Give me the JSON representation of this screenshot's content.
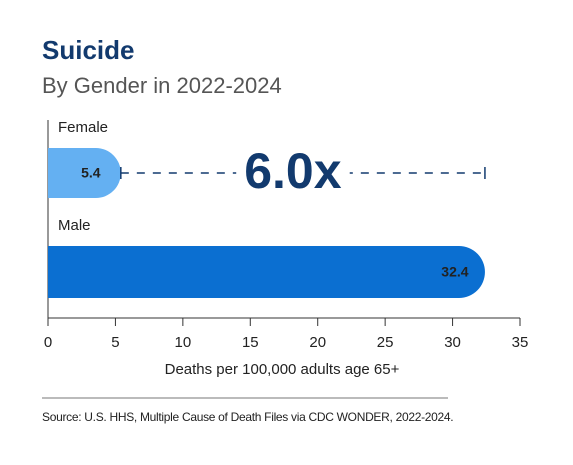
{
  "chart_data": {
    "type": "bar",
    "orientation": "horizontal",
    "title": "Suicide",
    "subtitle": "By Gender in 2022-2024",
    "categories": [
      "Female",
      "Male"
    ],
    "values": [
      5.4,
      32.4
    ],
    "colors": [
      "#64b0f2",
      "#0b6fd1"
    ],
    "label_colors": [
      "#1a1a1a",
      "#ffffff"
    ],
    "xlim": [
      0,
      35
    ],
    "xticks": [
      0,
      5,
      10,
      15,
      20,
      25,
      30,
      35
    ],
    "xlabel": "Deaths per 100,000 adults age 65+",
    "annotation": "6.0x",
    "source": "Source: U.S. HHS, Multiple Cause of Death Files via CDC WONDER, 2022-2024."
  }
}
